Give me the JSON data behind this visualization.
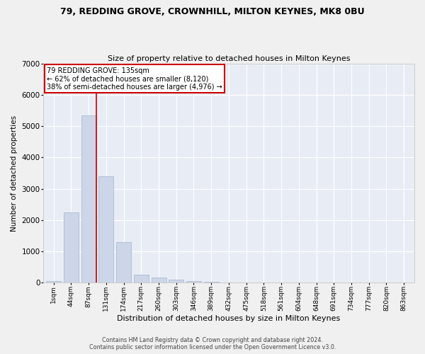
{
  "title": "79, REDDING GROVE, CROWNHILL, MILTON KEYNES, MK8 0BU",
  "subtitle": "Size of property relative to detached houses in Milton Keynes",
  "xlabel": "Distribution of detached houses by size in Milton Keynes",
  "ylabel": "Number of detached properties",
  "footer_line1": "Contains HM Land Registry data © Crown copyright and database right 2024.",
  "footer_line2": "Contains public sector information licensed under the Open Government Licence v3.0.",
  "bar_color": "#ccd6e8",
  "bar_edge_color": "#a0b4cc",
  "background_color": "#e8edf5",
  "grid_color": "#ffffff",
  "fig_background": "#f0f0f0",
  "annotation_box_color": "#cc0000",
  "annotation_line_color": "#cc0000",
  "categories": [
    "1sqm",
    "44sqm",
    "87sqm",
    "131sqm",
    "174sqm",
    "217sqm",
    "260sqm",
    "303sqm",
    "346sqm",
    "389sqm",
    "432sqm",
    "475sqm",
    "518sqm",
    "561sqm",
    "604sqm",
    "648sqm",
    "691sqm",
    "734sqm",
    "777sqm",
    "820sqm",
    "863sqm"
  ],
  "values": [
    50,
    2250,
    5350,
    3400,
    1300,
    250,
    150,
    90,
    50,
    10,
    5,
    2,
    1,
    0,
    0,
    0,
    0,
    0,
    0,
    0,
    0
  ],
  "property_label": "79 REDDING GROVE: 135sqm",
  "pct_smaller": 62,
  "n_smaller": 8120,
  "pct_larger_semi": 38,
  "n_larger_semi": 4976,
  "marker_bar_index": 2,
  "ylim": [
    0,
    7000
  ],
  "yticks": [
    0,
    1000,
    2000,
    3000,
    4000,
    5000,
    6000,
    7000
  ]
}
